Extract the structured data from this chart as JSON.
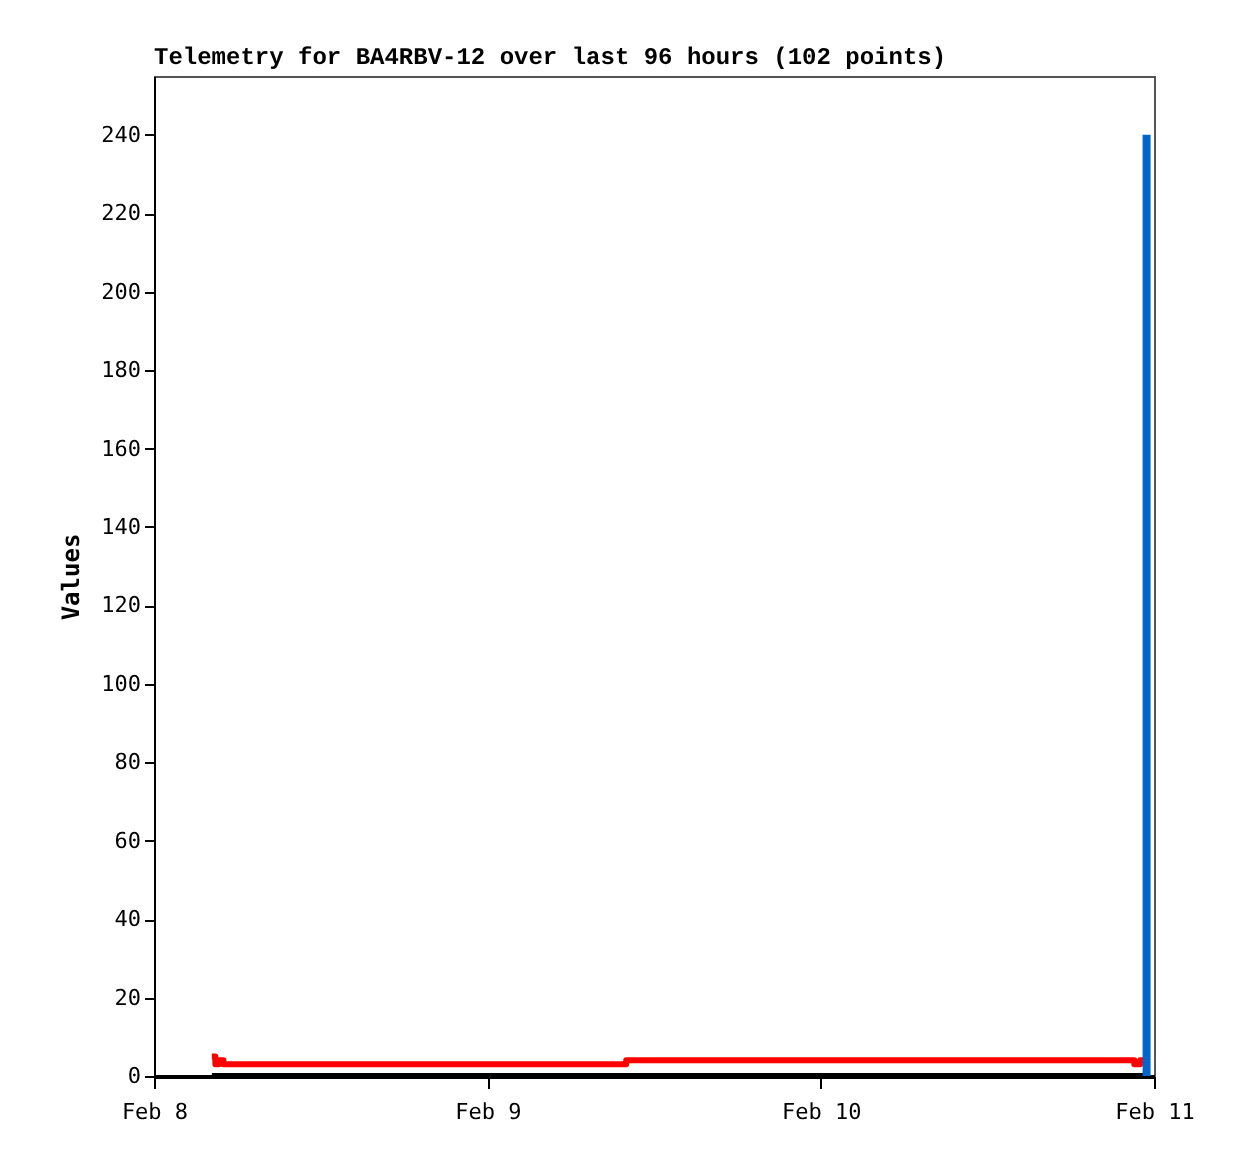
{
  "chart_data": {
    "type": "step",
    "title": "Telemetry for BA4RBV-12 over last 96 hours (102 points)",
    "ylabel": "Values",
    "xlim": [
      "--02-08",
      "--02-11"
    ],
    "xticks": [
      {
        "value": "--02-08",
        "label": "Feb 8"
      },
      {
        "value": "--02-09",
        "label": "Feb 9"
      },
      {
        "value": "--02-10",
        "label": "Feb 10"
      },
      {
        "value": "--02-11",
        "label": "Feb 11"
      }
    ],
    "ylim": [
      0,
      255
    ],
    "yticks": [
      0,
      20,
      40,
      60,
      80,
      100,
      120,
      140,
      160,
      180,
      200,
      220,
      240
    ],
    "grid": false,
    "series": [
      {
        "color": "#000000",
        "x": [
          "--02-08T04:10",
          "--02-10T23:28"
        ],
        "values": [
          0,
          0
        ]
      },
      {
        "color": "#ff0000",
        "x": [
          "--02-08T04:10",
          "--02-08T04:25",
          "--02-08T04:40",
          "--02-08T05:00",
          "--02-09T10:00",
          "--02-10T22:35",
          "--02-10T23:00",
          "--02-10T23:28"
        ],
        "values": [
          5,
          3,
          4,
          3,
          4,
          3,
          4,
          4
        ]
      },
      {
        "color": "#0066cc",
        "type": "line",
        "x": [
          "--02-10T23:28",
          "--02-10T23:28"
        ],
        "values": [
          0,
          240
        ]
      }
    ]
  }
}
